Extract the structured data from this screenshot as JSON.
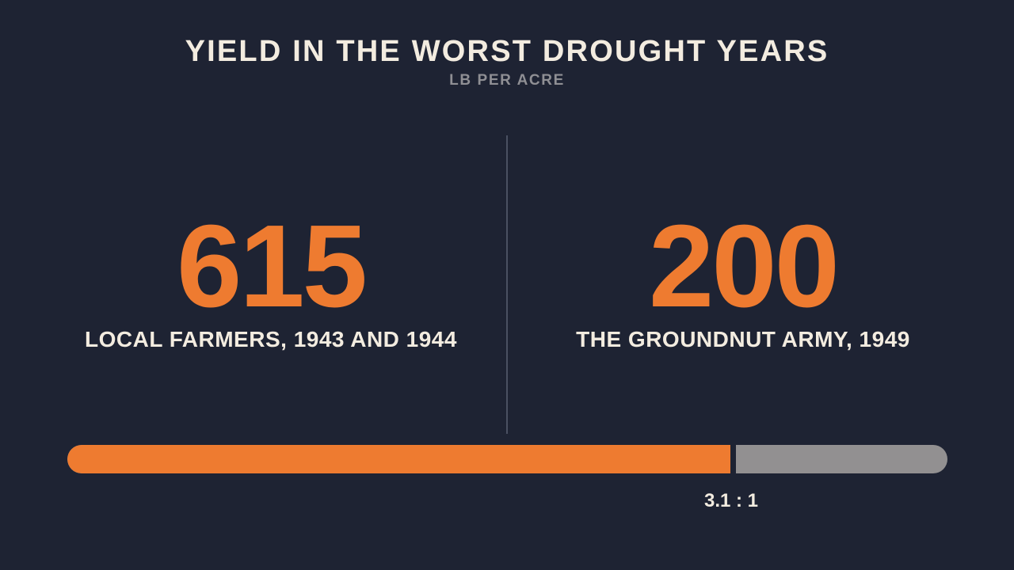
{
  "header": {
    "title": "YIELD IN THE WORST DROUGHT YEARS",
    "subtitle": "LB PER ACRE"
  },
  "stats": [
    {
      "value": "615",
      "label": "LOCAL FARMERS, 1943 AND 1944"
    },
    {
      "value": "200",
      "label": "THE GROUNDNUT ARMY, 1949"
    }
  ],
  "ratio_label": "3.1 : 1",
  "colors": {
    "background": "#1e2333",
    "accent": "#ee7b30",
    "remainder": "#929091",
    "text": "#f3ece0",
    "muted": "#8f8f94"
  },
  "chart_data": {
    "type": "bar",
    "title": "YIELD IN THE WORST DROUGHT YEARS",
    "subtitle": "LB PER ACRE",
    "categories": [
      "LOCAL FARMERS, 1943 AND 1944",
      "THE GROUNDNUT ARMY, 1949"
    ],
    "values": [
      615,
      200
    ],
    "ratio": "3.1 : 1"
  }
}
